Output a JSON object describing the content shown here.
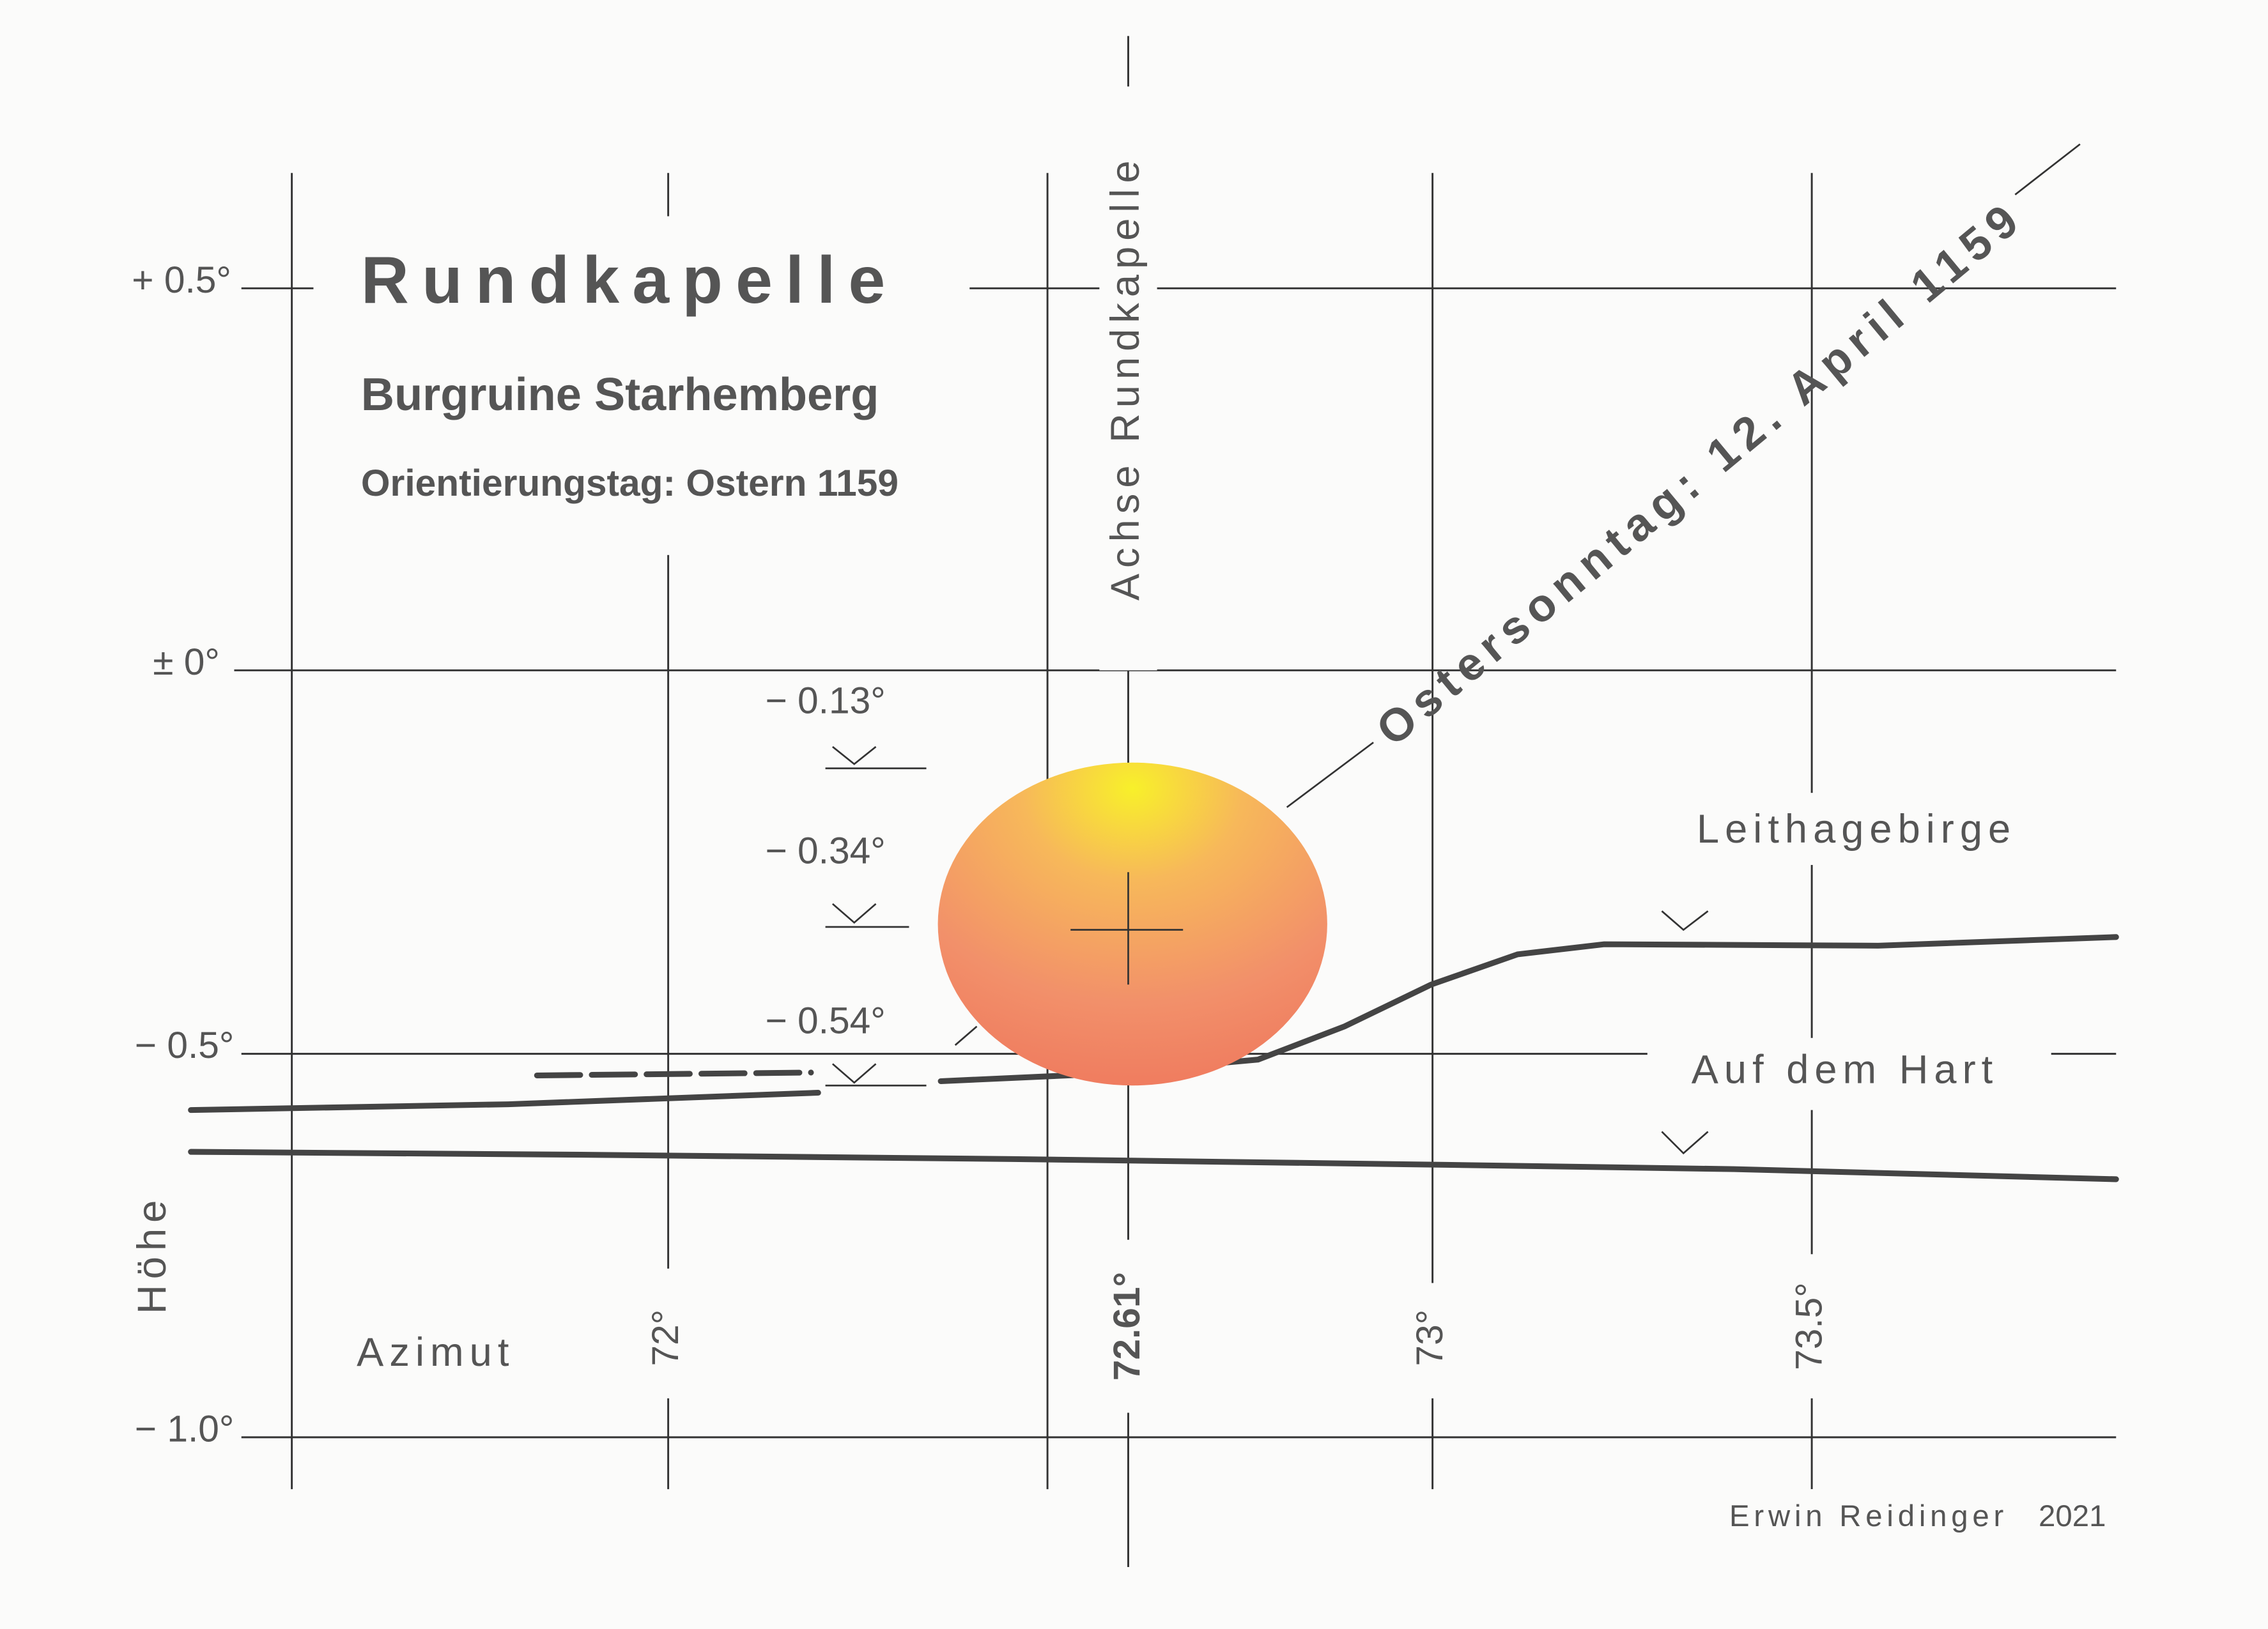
{
  "title": "Rundkapelle",
  "subtitle": "Burgruine Starhemberg",
  "orientation_day": "Orientierungstag: Ostern 1159",
  "axis_label": "Achse Rundkapelle",
  "date_label": "Ostersonntag: 12. April 1159",
  "y_axis": {
    "title": "Höhe",
    "ticks": [
      "+ 0.5°",
      "± 0°",
      "− 0.5°",
      "− 1.0°"
    ]
  },
  "x_axis": {
    "title": "Azimut",
    "ticks": [
      "72°",
      "72.61°",
      "73°",
      "73.5°"
    ]
  },
  "horizon_heights": [
    "− 0.13°",
    "− 0.34°",
    "− 0.54°"
  ],
  "horizons": [
    "Leithagebirge",
    "Auf dem Hart"
  ],
  "credit": {
    "author": "Erwin Reidinger",
    "year": "2021"
  }
}
